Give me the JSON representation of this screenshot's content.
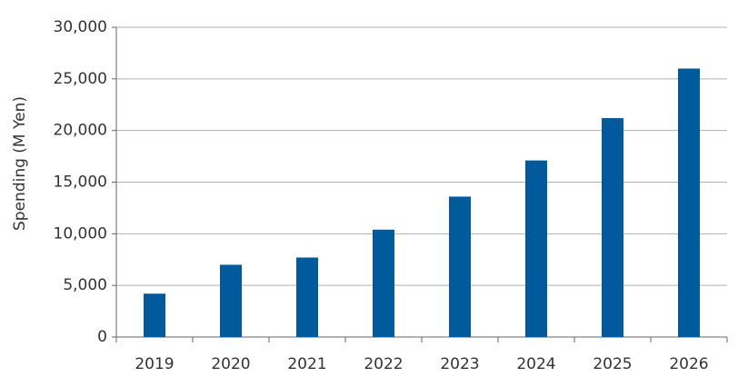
{
  "chart_data": {
    "type": "bar",
    "y_label": "Spending (M Yen)",
    "categories": [
      "2019",
      "2020",
      "2021",
      "2022",
      "2023",
      "2024",
      "2025",
      "2026"
    ],
    "values": [
      4200,
      7000,
      7700,
      10400,
      13600,
      17100,
      21200,
      26000
    ],
    "color": "#005a9c",
    "ylim": [
      0,
      30000
    ],
    "yticks": [
      0,
      {
        "value": 5000,
        "label": "5,000"
      },
      {
        "value": 10000,
        "label": "10,000"
      },
      {
        "value": 15000,
        "label": "15,000"
      },
      {
        "value": 20000,
        "label": "20,000"
      },
      {
        "value": 25000,
        "label": "25,000"
      },
      {
        "value": 30000,
        "label": "30,000"
      }
    ],
    "grid": true
  }
}
